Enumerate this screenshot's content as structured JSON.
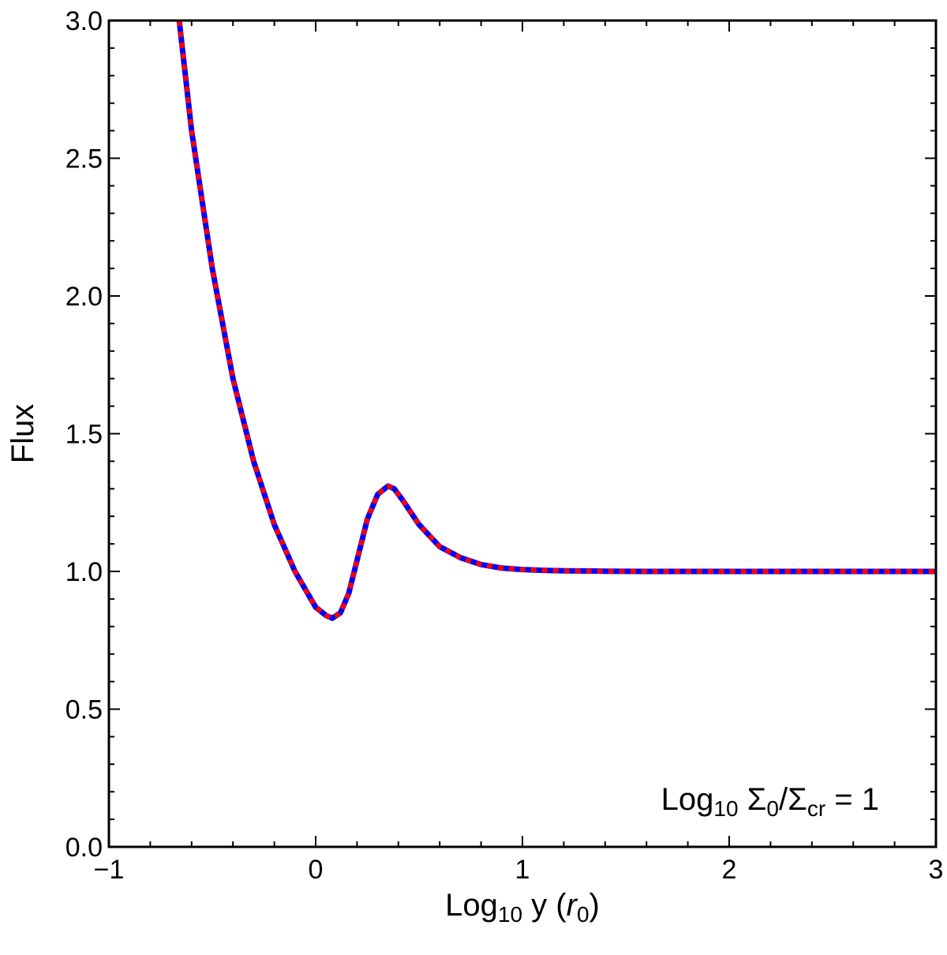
{
  "chart_data": {
    "type": "line",
    "xlabel": {
      "main": "Log",
      "sub": "10",
      "rest": " y (",
      "italic": "r",
      "italic_sub": "0",
      "close": ")"
    },
    "ylabel": "Flux",
    "xlim": [
      -1,
      3
    ],
    "ylim": [
      0,
      3
    ],
    "x_ticks": [
      -1,
      0,
      1,
      2,
      3
    ],
    "x_tick_labels": [
      "−1",
      "0",
      "1",
      "2",
      "3"
    ],
    "y_ticks": [
      0,
      0.5,
      1,
      1.5,
      2,
      2.5,
      3
    ],
    "y_tick_labels": [
      "0.0",
      "0.5",
      "1.0",
      "1.5",
      "2.0",
      "2.5",
      "3.0"
    ],
    "annotation": {
      "a": "Log",
      "a_sub": "10",
      "b": " Σ",
      "b_sub": "0",
      "c": "/Σ",
      "c_sub": "cr",
      "d": " = 1"
    },
    "grid": false,
    "series": [
      {
        "color": "#0000ff",
        "style": "solid",
        "x": [
          -0.66,
          -0.6,
          -0.5,
          -0.4,
          -0.3,
          -0.2,
          -0.1,
          0.0,
          0.05,
          0.08,
          0.12,
          0.16,
          0.2,
          0.25,
          0.3,
          0.35,
          0.38,
          0.42,
          0.5,
          0.6,
          0.7,
          0.8,
          0.9,
          1.0,
          1.1,
          1.2,
          1.4,
          1.6,
          2.0,
          2.5,
          3.0
        ],
        "y": [
          3.0,
          2.6,
          2.1,
          1.7,
          1.4,
          1.17,
          1.0,
          0.87,
          0.84,
          0.83,
          0.85,
          0.92,
          1.04,
          1.19,
          1.28,
          1.31,
          1.3,
          1.26,
          1.17,
          1.09,
          1.05,
          1.025,
          1.012,
          1.007,
          1.004,
          1.002,
          1.001,
          1.0,
          1.0,
          1.0,
          1.0
        ]
      },
      {
        "color": "#ff0000",
        "style": "dotted",
        "x": [
          -0.66,
          -0.6,
          -0.5,
          -0.4,
          -0.3,
          -0.2,
          -0.1,
          0.0,
          0.05,
          0.08,
          0.12,
          0.16,
          0.2,
          0.25,
          0.3,
          0.35,
          0.38,
          0.42,
          0.5,
          0.6,
          0.7,
          0.8,
          0.9,
          1.0,
          1.1,
          1.2,
          1.4,
          1.6,
          2.0,
          2.5,
          3.0
        ],
        "y": [
          3.0,
          2.6,
          2.1,
          1.7,
          1.4,
          1.17,
          1.0,
          0.87,
          0.84,
          0.83,
          0.85,
          0.92,
          1.04,
          1.19,
          1.28,
          1.31,
          1.3,
          1.26,
          1.17,
          1.09,
          1.05,
          1.025,
          1.012,
          1.007,
          1.004,
          1.002,
          1.001,
          1.0,
          1.0,
          1.0,
          1.0
        ]
      }
    ]
  }
}
